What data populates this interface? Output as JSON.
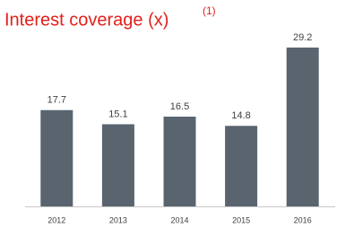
{
  "chart_data": {
    "type": "bar",
    "title": "Interest coverage (x)",
    "title_superscript": "(1)",
    "categories": [
      "2012",
      "2013",
      "2014",
      "2015",
      "2016"
    ],
    "values": [
      17.7,
      15.1,
      16.5,
      14.8,
      29.2
    ],
    "color": "#59646f",
    "title_color": "#e3201b"
  }
}
